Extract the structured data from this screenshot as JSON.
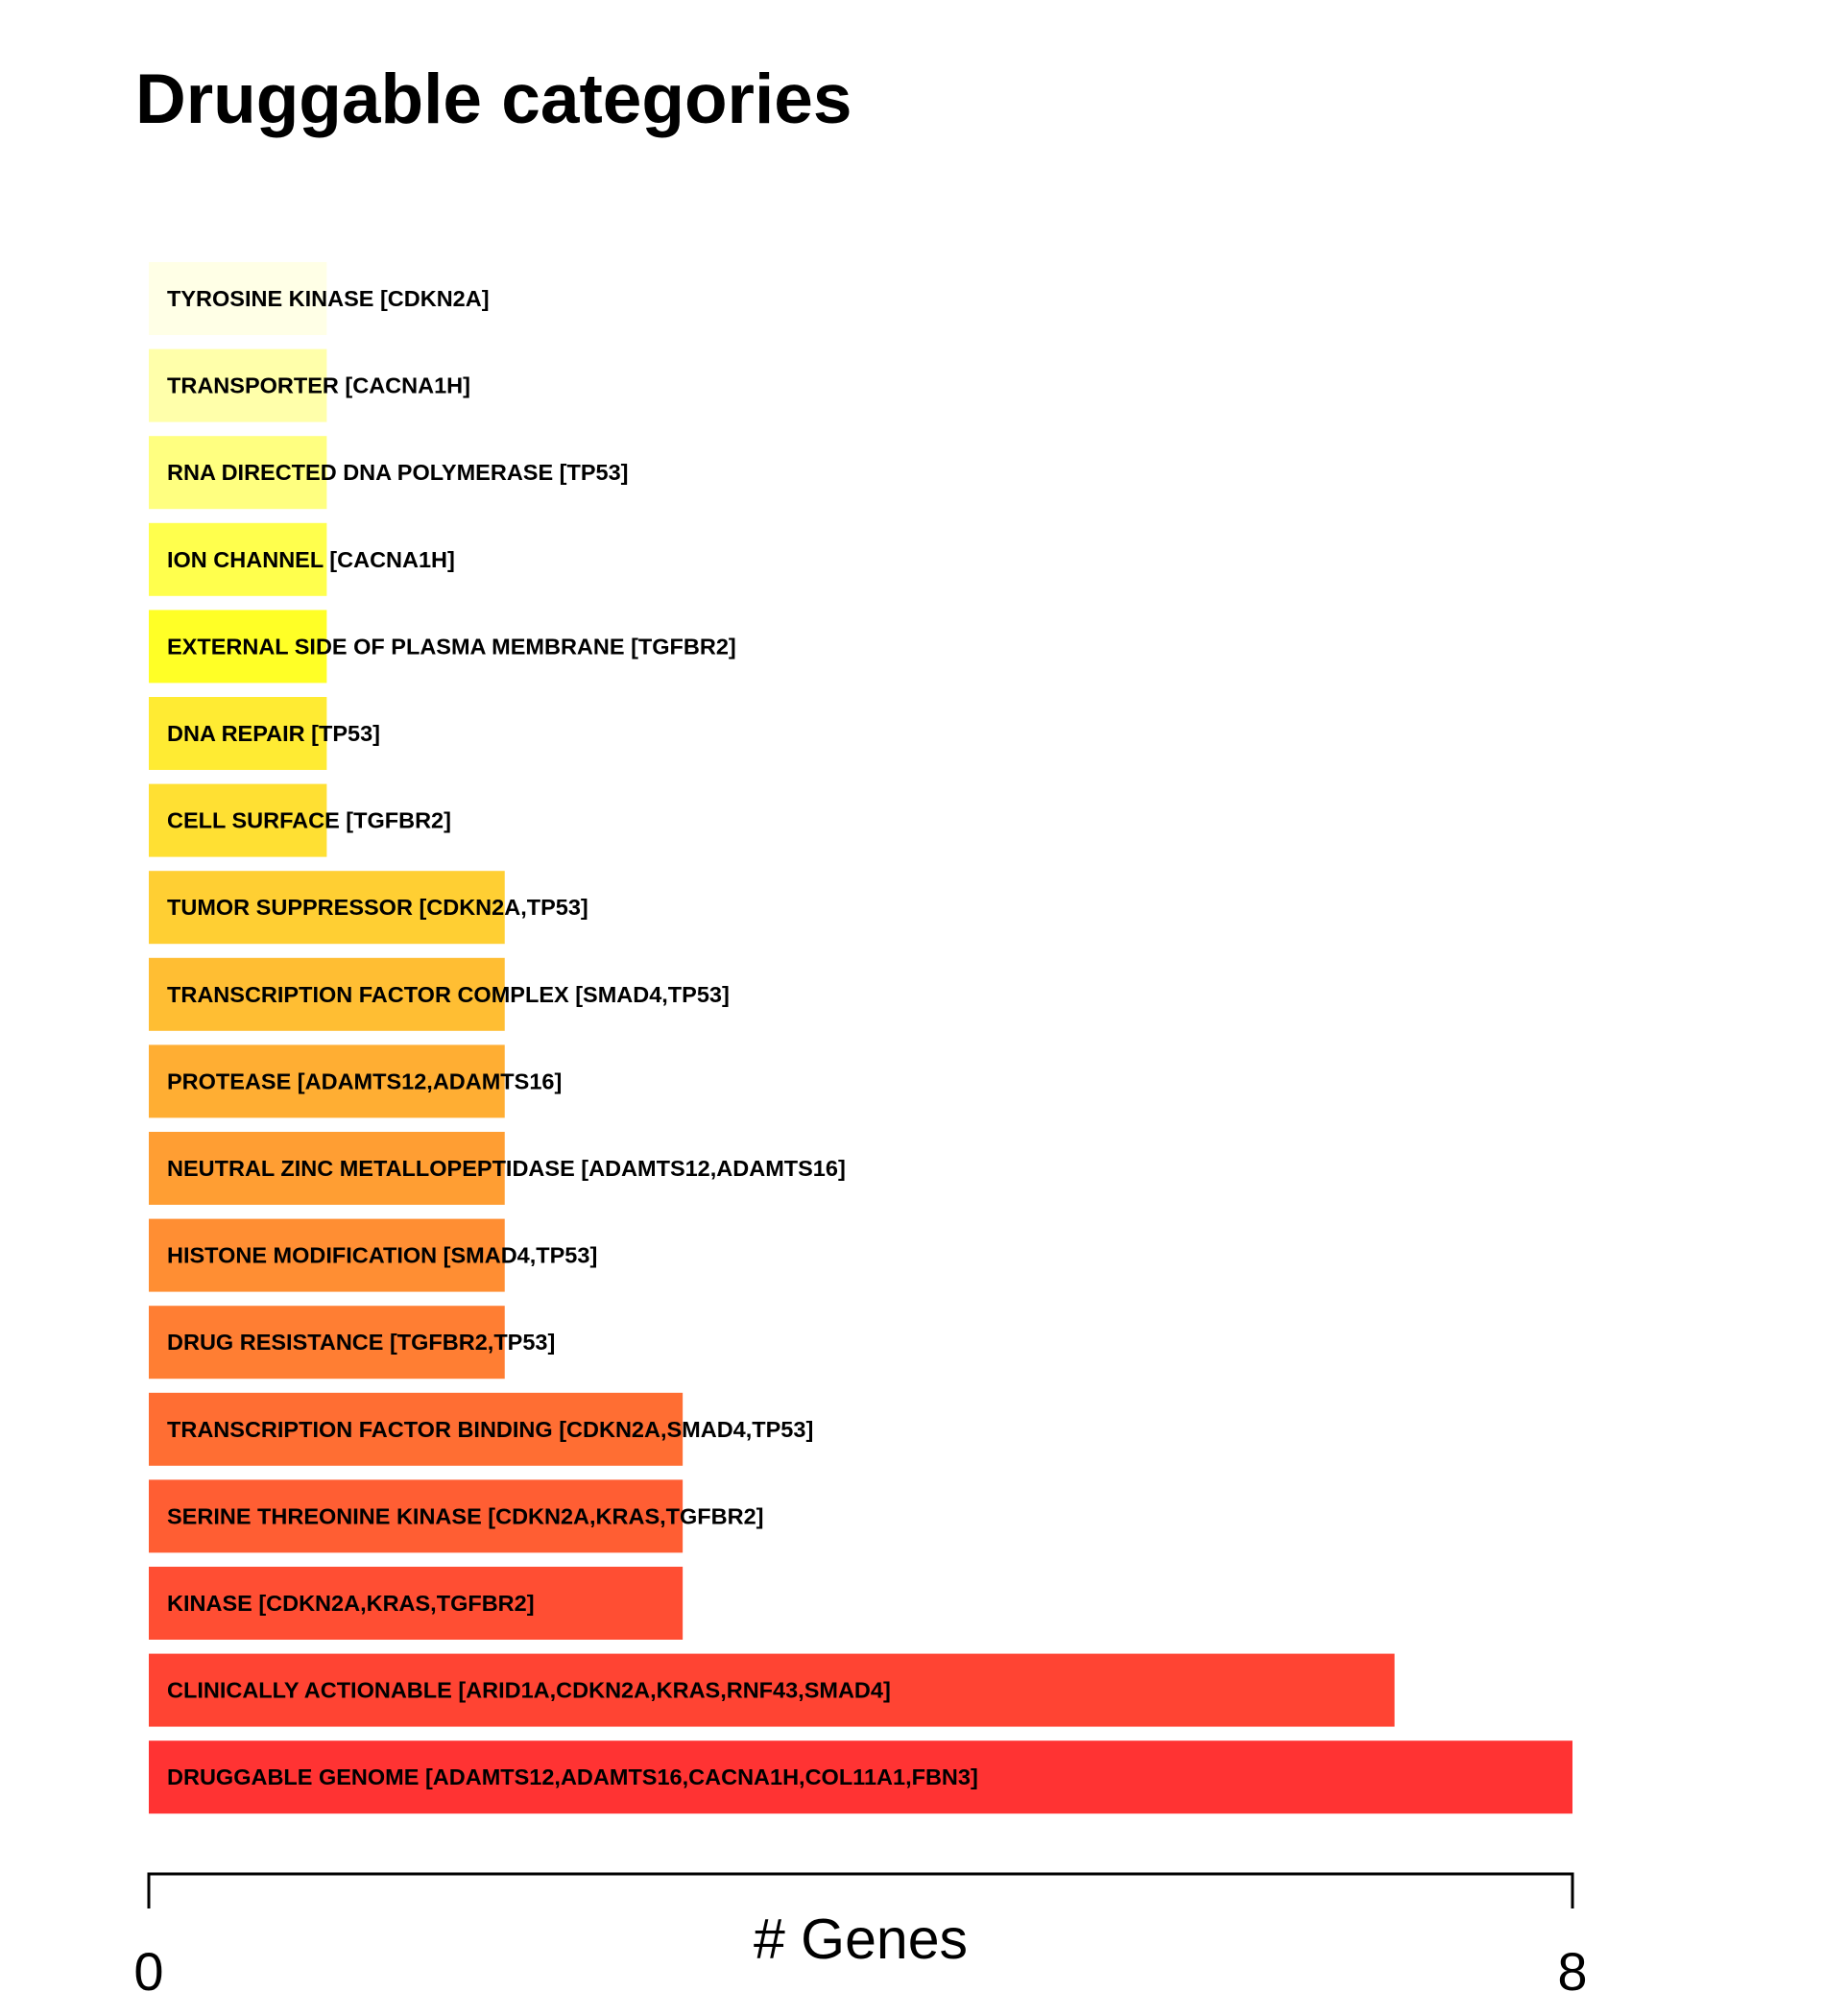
{
  "chart_data": {
    "type": "bar",
    "orientation": "horizontal",
    "title": "Druggable categories",
    "xlabel": "# Genes",
    "xlim": [
      0,
      8
    ],
    "x_tick_labels": [
      "0",
      "8"
    ],
    "grid": false,
    "legend": "none",
    "bars": [
      {
        "label": "TYROSINE KINASE [CDKN2A]",
        "value": 1,
        "color": "#FFFFE6"
      },
      {
        "label": "TRANSPORTER [CACNA1H]",
        "value": 1,
        "color": "#FFFFAA"
      },
      {
        "label": "RNA DIRECTED DNA POLYMERASE [TP53]",
        "value": 1,
        "color": "#FFFF80"
      },
      {
        "label": "ION CHANNEL [CACNA1H]",
        "value": 1,
        "color": "#FFFF4D"
      },
      {
        "label": "EXTERNAL SIDE OF PLASMA MEMBRANE [TGFBR2]",
        "value": 1,
        "color": "#FFFF26"
      },
      {
        "label": "DNA REPAIR [TP53]",
        "value": 1,
        "color": "#FFEB33"
      },
      {
        "label": "CELL SURFACE [TGFBR2]",
        "value": 1,
        "color": "#FFE033"
      },
      {
        "label": "TUMOR SUPPRESSOR [CDKN2A,TP53]",
        "value": 2,
        "color": "#FFCF33"
      },
      {
        "label": "TRANSCRIPTION FACTOR COMPLEX [SMAD4,TP53]",
        "value": 2,
        "color": "#FFBE33"
      },
      {
        "label": "PROTEASE [ADAMTS12,ADAMTS16]",
        "value": 2,
        "color": "#FFAE33"
      },
      {
        "label": "NEUTRAL ZINC METALLOPEPTIDASE [ADAMTS12,ADAMTS16]",
        "value": 2,
        "color": "#FF9E33"
      },
      {
        "label": "HISTONE MODIFICATION [SMAD4,TP53]",
        "value": 2,
        "color": "#FF8E33"
      },
      {
        "label": "DRUG RESISTANCE [TGFBR2,TP53]",
        "value": 2,
        "color": "#FF7E33"
      },
      {
        "label": "TRANSCRIPTION FACTOR BINDING [CDKN2A,SMAD4,TP53]",
        "value": 3,
        "color": "#FF6E33"
      },
      {
        "label": "SERINE THREONINE KINASE [CDKN2A,KRAS,TGFBR2]",
        "value": 3,
        "color": "#FF5E33"
      },
      {
        "label": "KINASE [CDKN2A,KRAS,TGFBR2]",
        "value": 3,
        "color": "#FF4E33"
      },
      {
        "label": "CLINICALLY ACTIONABLE [ARID1A,CDKN2A,KRAS,RNF43,SMAD4]",
        "value": 7,
        "color": "#FF4433"
      },
      {
        "label": "DRUGGABLE GENOME [ADAMTS12,ADAMTS16,CACNA1H,COL11A1,FBN3]",
        "value": 8,
        "color": "#FF3333"
      }
    ]
  }
}
